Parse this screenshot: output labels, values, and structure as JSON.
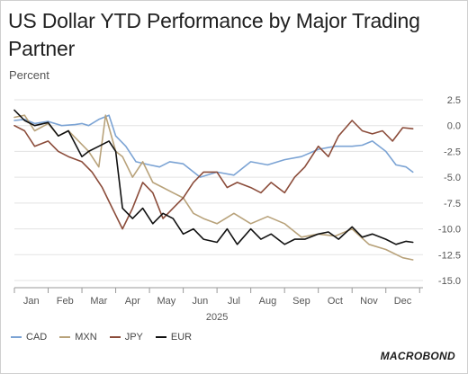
{
  "page": {
    "title": "US Dollar YTD Performance by Major Trading Partner",
    "unit": "Percent",
    "brand": "MACROBOND"
  },
  "chart_data": {
    "type": "line",
    "title": "US Dollar YTD Performance by Major Trading Partner",
    "ylabel": "Percent",
    "xlabel": "2025",
    "ylim": [
      -15.0,
      2.5
    ],
    "y_ticks": [
      "2.5",
      "0.0",
      "-2.5",
      "-5.0",
      "-7.5",
      "-10.0",
      "-12.5",
      "-15.0"
    ],
    "y_tick_values": [
      2.5,
      0.0,
      -2.5,
      -5.0,
      -7.5,
      -10.0,
      -12.5,
      -15.0
    ],
    "x_ticks": [
      "Jan",
      "Feb",
      "Mar",
      "Apr",
      "May",
      "Jun",
      "Jul",
      "Aug",
      "Sep",
      "Oct",
      "Nov",
      "Dec"
    ],
    "x_tick_values": [
      0.5,
      1.5,
      2.5,
      3.5,
      4.5,
      5.5,
      6.5,
      7.5,
      8.5,
      9.5,
      10.5,
      11.5
    ],
    "xlim": [
      0,
      12.1
    ],
    "year_label": "2025",
    "y_axis_side": "right",
    "grid": true,
    "legend_position": "bottom-left",
    "series": [
      {
        "name": "CAD",
        "color": "#7ba3d4",
        "x": [
          0.0,
          0.3,
          0.6,
          1.0,
          1.4,
          1.8,
          2.0,
          2.2,
          2.5,
          2.8,
          3.0,
          3.3,
          3.6,
          4.0,
          4.3,
          4.6,
          5.0,
          5.5,
          6.0,
          6.5,
          7.0,
          7.5,
          8.0,
          8.5,
          9.0,
          9.5,
          10.0,
          10.3,
          10.6,
          11.0,
          11.3,
          11.6,
          11.8
        ],
        "values": [
          0.5,
          0.6,
          0.2,
          0.4,
          0.0,
          0.1,
          0.2,
          0.0,
          0.6,
          1.0,
          -1.0,
          -2.0,
          -3.5,
          -3.8,
          -4.0,
          -3.5,
          -3.7,
          -5.0,
          -4.5,
          -4.8,
          -3.5,
          -3.8,
          -3.3,
          -3.0,
          -2.3,
          -2.0,
          -2.0,
          -1.9,
          -1.5,
          -2.5,
          -3.8,
          -4.0,
          -4.5
        ]
      },
      {
        "name": "MXN",
        "color": "#b8a27a",
        "x": [
          0.0,
          0.3,
          0.6,
          1.0,
          1.3,
          1.6,
          1.9,
          2.2,
          2.5,
          2.7,
          3.0,
          3.2,
          3.5,
          3.8,
          4.1,
          4.4,
          4.7,
          5.0,
          5.3,
          5.6,
          6.0,
          6.5,
          7.0,
          7.5,
          8.0,
          8.5,
          9.0,
          9.5,
          10.0,
          10.5,
          11.0,
          11.5,
          11.8
        ],
        "values": [
          0.8,
          1.0,
          -0.5,
          0.2,
          -1.0,
          -0.5,
          -1.5,
          -2.5,
          -4.0,
          1.0,
          -2.5,
          -3.0,
          -5.0,
          -3.5,
          -5.5,
          -6.0,
          -6.5,
          -7.0,
          -8.5,
          -9.0,
          -9.5,
          -8.5,
          -9.5,
          -8.8,
          -9.5,
          -10.8,
          -10.5,
          -10.7,
          -10.0,
          -11.5,
          -12.0,
          -12.8,
          -13.0
        ]
      },
      {
        "name": "JPY",
        "color": "#8b4c3a",
        "x": [
          0.0,
          0.3,
          0.6,
          1.0,
          1.3,
          1.6,
          2.0,
          2.3,
          2.6,
          2.9,
          3.2,
          3.5,
          3.8,
          4.1,
          4.4,
          4.7,
          5.0,
          5.3,
          5.6,
          6.0,
          6.3,
          6.6,
          7.0,
          7.3,
          7.6,
          8.0,
          8.3,
          8.6,
          9.0,
          9.3,
          9.6,
          10.0,
          10.3,
          10.6,
          10.9,
          11.2,
          11.5,
          11.8
        ],
        "values": [
          0.0,
          -0.5,
          -2.0,
          -1.5,
          -2.5,
          -3.0,
          -3.5,
          -4.5,
          -6.0,
          -8.0,
          -10.0,
          -8.0,
          -5.5,
          -6.5,
          -9.0,
          -8.0,
          -7.0,
          -5.5,
          -4.5,
          -4.5,
          -6.0,
          -5.5,
          -6.0,
          -6.5,
          -5.5,
          -6.5,
          -5.0,
          -4.0,
          -2.0,
          -3.0,
          -1.0,
          0.5,
          -0.5,
          -0.8,
          -0.5,
          -1.5,
          -0.2,
          -0.3
        ]
      },
      {
        "name": "EUR",
        "color": "#111111",
        "x": [
          0.0,
          0.3,
          0.6,
          1.0,
          1.3,
          1.6,
          2.0,
          2.2,
          2.5,
          2.8,
          3.0,
          3.2,
          3.5,
          3.8,
          4.1,
          4.4,
          4.7,
          5.0,
          5.3,
          5.6,
          6.0,
          6.3,
          6.6,
          7.0,
          7.3,
          7.6,
          8.0,
          8.3,
          8.6,
          9.0,
          9.3,
          9.6,
          10.0,
          10.3,
          10.6,
          11.0,
          11.3,
          11.6,
          11.8
        ],
        "values": [
          1.5,
          0.5,
          0.0,
          0.3,
          -1.0,
          -0.5,
          -3.0,
          -2.5,
          -2.0,
          -1.5,
          -2.5,
          -8.0,
          -9.0,
          -8.0,
          -9.5,
          -8.5,
          -9.0,
          -10.5,
          -10.0,
          -11.0,
          -11.3,
          -10.0,
          -11.5,
          -10.0,
          -11.0,
          -10.5,
          -11.5,
          -11.0,
          -11.0,
          -10.5,
          -10.3,
          -11.0,
          -9.8,
          -10.8,
          -10.5,
          -11.0,
          -11.5,
          -11.2,
          -11.3
        ]
      }
    ]
  }
}
